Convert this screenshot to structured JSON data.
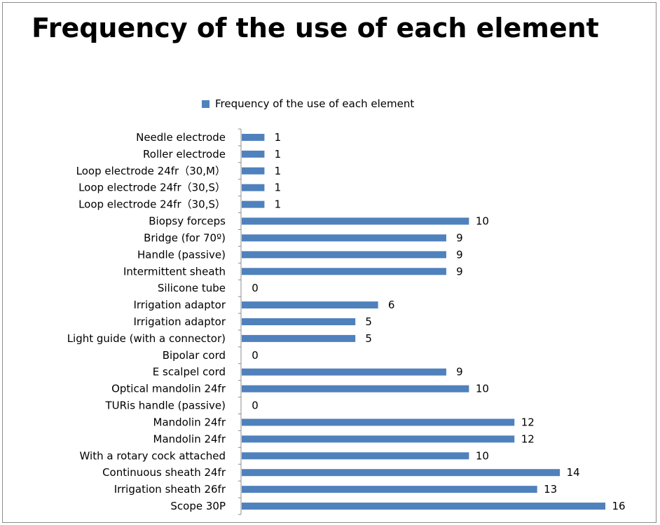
{
  "chart_data": {
    "type": "bar",
    "orientation": "horizontal",
    "title": "Frequency of the use of each element",
    "xlabel": "",
    "ylabel": "",
    "xlim": [
      0,
      16
    ],
    "grid": false,
    "legend": "top-center",
    "series_color": "#4f81bd",
    "categories": [
      "Needle electrode",
      "Roller electrode",
      "Loop electrode 24fr（30,M）",
      "Loop electrode 24fr（30,S）",
      "Loop electrode 24fr（30,S）",
      "Biopsy forceps",
      "Bridge (for 70º)",
      "Handle (passive)",
      "Intermittent sheath",
      "Silicone tube",
      "Irrigation adaptor",
      "Irrigation adaptor",
      "Light guide (with a connector)",
      "Bipolar cord",
      "E scalpel cord",
      "Optical mandolin  24fr",
      "TURis handle (passive)",
      "Mandolin  24fr",
      "Mandolin  24fr",
      "With a rotary cock attached",
      "Continuous sheath  24fr",
      "Irrigation sheath 26fr",
      "Scope 30P"
    ],
    "series": [
      {
        "name": "Frequency of the use of each element",
        "values": [
          1,
          1,
          1,
          1,
          1,
          10,
          9,
          9,
          9,
          0,
          6,
          5,
          5,
          0,
          9,
          10,
          0,
          12,
          12,
          10,
          14,
          13,
          16
        ]
      }
    ]
  }
}
